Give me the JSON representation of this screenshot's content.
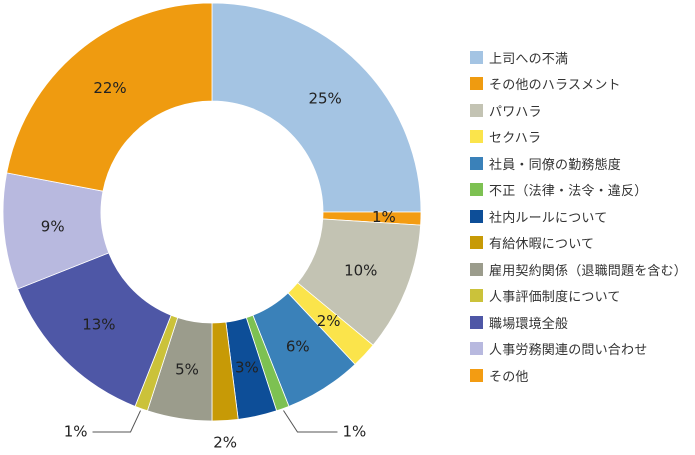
{
  "chart_data": {
    "type": "pie",
    "donut": true,
    "legend_position": "right",
    "slices": [
      {
        "label": "上司への不満",
        "value": 25,
        "value_label": "25%",
        "color": "#a4c4e3"
      },
      {
        "label": "その他",
        "value": 1,
        "value_label": "1%",
        "color": "#f39c12"
      },
      {
        "label": "パワハラ",
        "value": 10,
        "value_label": "10%",
        "color": "#c3c3b3"
      },
      {
        "label": "セクハラ",
        "value": 2,
        "value_label": "2%",
        "color": "#fbe44b"
      },
      {
        "label": "社員・同僚の勤務態度",
        "value": 6,
        "value_label": "6%",
        "color": "#3a81b9"
      },
      {
        "label": "不正（法律・法令・違反）",
        "value": 1,
        "value_label": "1%",
        "color": "#7dc152"
      },
      {
        "label": "社内ルールについて",
        "value": 3,
        "value_label": "3%",
        "color": "#0d4e98"
      },
      {
        "label": "有給休暇について",
        "value": 2,
        "value_label": "2%",
        "color": "#c79a06"
      },
      {
        "label": "雇用契約関係（退職問題を含む）",
        "value": 5,
        "value_label": "5%",
        "color": "#9b9c8c"
      },
      {
        "label": "人事評価制度について",
        "value": 1,
        "value_label": "1%",
        "color": "#cbc23a"
      },
      {
        "label": "職場環境全般",
        "value": 13,
        "value_label": "13%",
        "color": "#4e57a6"
      },
      {
        "label": "人事労務関連の問い合わせ",
        "value": 9,
        "value_label": "9%",
        "color": "#b8b9df"
      },
      {
        "label": "その他のハラスメント",
        "value": 22,
        "value_label": "22%",
        "color": "#ef9b10"
      }
    ],
    "legend": [
      {
        "label": "上司への不満",
        "color": "#a4c4e3"
      },
      {
        "label": "その他のハラスメント",
        "color": "#ef9b10"
      },
      {
        "label": "パワハラ",
        "color": "#c3c3b3"
      },
      {
        "label": "セクハラ",
        "color": "#fbe44b"
      },
      {
        "label": "社員・同僚の勤務態度",
        "color": "#3a81b9"
      },
      {
        "label": "不正（法律・法令・違反）",
        "color": "#7dc152"
      },
      {
        "label": "社内ルールについて",
        "color": "#0d4e98"
      },
      {
        "label": "有給休暇について",
        "color": "#c79a06"
      },
      {
        "label": "雇用契約関係（退職問題を含む）",
        "color": "#9b9c8c"
      },
      {
        "label": "人事評価制度について",
        "color": "#cbc23a"
      },
      {
        "label": "職場環境全般",
        "color": "#4e57a6"
      },
      {
        "label": "人事労務関連の問い合わせ",
        "color": "#b8b9df"
      },
      {
        "label": "その他",
        "color": "#f39c12"
      }
    ]
  }
}
